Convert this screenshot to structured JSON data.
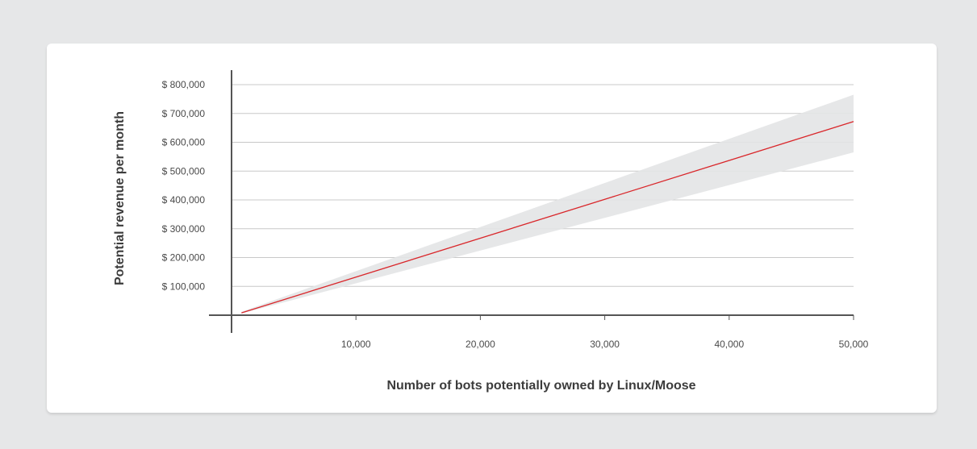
{
  "chart_data": {
    "type": "line",
    "title": "",
    "xlabel": "Number of bots potentially owned by Linux/Moose",
    "ylabel": "Potential revenue per month",
    "xlim": [
      0,
      50000
    ],
    "ylim": [
      0,
      800000
    ],
    "x_ticks": [
      10000,
      20000,
      30000,
      40000,
      50000
    ],
    "x_tick_labels": [
      "10,000",
      "20,000",
      "30,000",
      "40,000",
      "50,000"
    ],
    "y_ticks": [
      100000,
      200000,
      300000,
      400000,
      500000,
      600000,
      700000,
      800000
    ],
    "y_tick_labels": [
      "$ 100,000",
      "$ 200,000",
      "$ 300,000",
      "$ 400,000",
      "$ 500,000",
      "$ 600,000",
      "$ 700,000",
      "$ 800,000"
    ],
    "grid": "horizontal",
    "series": [
      {
        "x": [
          800,
          50000
        ],
        "y": [
          8000,
          672000
        ],
        "color": "#d9262a"
      }
    ],
    "band": {
      "x": [
        800,
        50000
      ],
      "y_low": [
        6000,
        565000
      ],
      "y_high": [
        12000,
        765000
      ],
      "color": "#e3e4e5"
    }
  }
}
